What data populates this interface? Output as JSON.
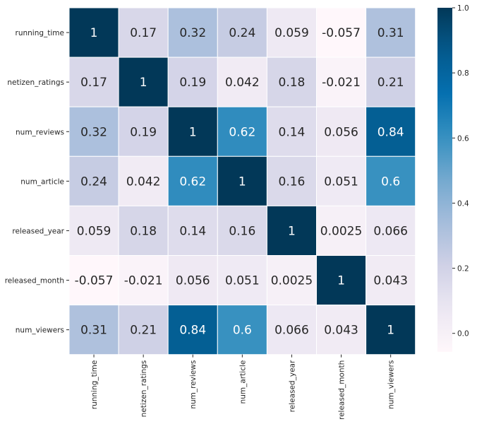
{
  "chart_data": {
    "type": "heatmap",
    "title": "",
    "xlabel": "",
    "ylabel": "",
    "variables": [
      "running_time",
      "netizen_ratings",
      "num_reviews",
      "num_article",
      "released_year",
      "released_month",
      "num_viewers"
    ],
    "matrix": [
      [
        1,
        0.17,
        0.32,
        0.24,
        0.059,
        -0.057,
        0.31
      ],
      [
        0.17,
        1,
        0.19,
        0.042,
        0.18,
        -0.021,
        0.21
      ],
      [
        0.32,
        0.19,
        1,
        0.62,
        0.14,
        0.056,
        0.84
      ],
      [
        0.24,
        0.042,
        0.62,
        1,
        0.16,
        0.051,
        0.6
      ],
      [
        0.059,
        0.18,
        0.14,
        0.16,
        1,
        0.0025,
        0.066
      ],
      [
        -0.057,
        -0.021,
        0.056,
        0.051,
        0.0025,
        1,
        0.043
      ],
      [
        0.31,
        0.21,
        0.84,
        0.6,
        0.066,
        0.043,
        1
      ]
    ],
    "labels": [
      [
        "1",
        "0.17",
        "0.32",
        "0.24",
        "0.059",
        "-0.057",
        "0.31"
      ],
      [
        "0.17",
        "1",
        "0.19",
        "0.042",
        "0.18",
        "-0.021",
        "0.21"
      ],
      [
        "0.32",
        "0.19",
        "1",
        "0.62",
        "0.14",
        "0.056",
        "0.84"
      ],
      [
        "0.24",
        "0.042",
        "0.62",
        "1",
        "0.16",
        "0.051",
        "0.6"
      ],
      [
        "0.059",
        "0.18",
        "0.14",
        "0.16",
        "1",
        "0.0025",
        "0.066"
      ],
      [
        "-0.057",
        "-0.021",
        "0.056",
        "0.051",
        "0.0025",
        "1",
        "0.043"
      ],
      [
        "0.31",
        "0.21",
        "0.84",
        "0.6",
        "0.066",
        "0.043",
        "1"
      ]
    ],
    "colormap": "PuBu",
    "vmin": -0.057,
    "vmax": 1.0,
    "colorbar": {
      "ticks": [
        0.0,
        0.2,
        0.4,
        0.6,
        0.8,
        1.0
      ],
      "tick_labels": [
        "0.0",
        "0.2",
        "0.4",
        "0.6",
        "0.8",
        "1.0"
      ]
    },
    "cell_border_color": "#ffffff",
    "annotation_color_dark": "#262626",
    "annotation_color_light": "#ffffff"
  }
}
